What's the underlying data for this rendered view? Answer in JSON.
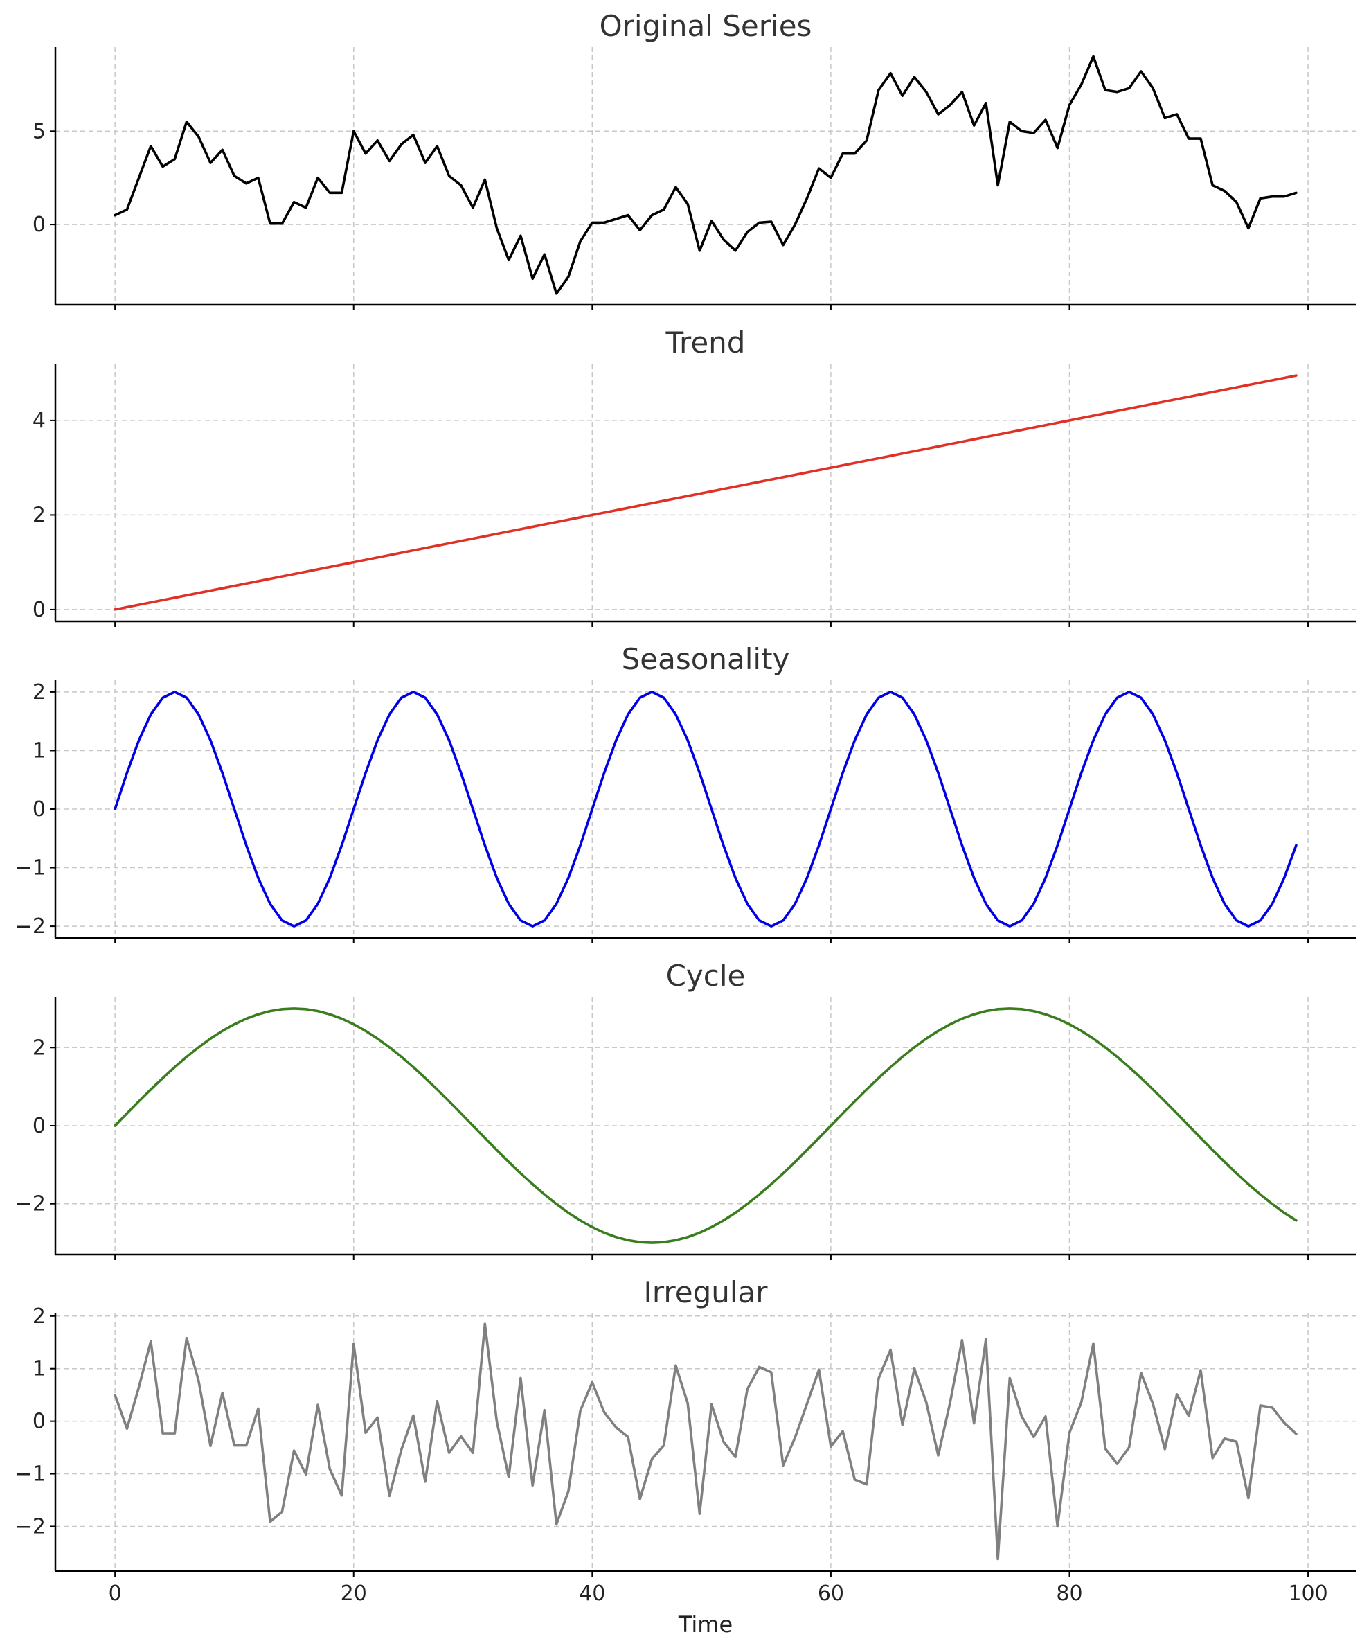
{
  "chart_data": [
    {
      "type": "line",
      "title": "Original Series",
      "color": "#000000",
      "xlim": [
        -5,
        104
      ],
      "ylim": [
        -4.3,
        9.5
      ],
      "xticks": [
        0,
        20,
        40,
        60,
        80,
        100
      ],
      "yticks": [
        0,
        5
      ],
      "grid": true,
      "x": [
        0,
        1,
        2,
        3,
        4,
        5,
        6,
        7,
        8,
        9,
        10,
        11,
        12,
        13,
        14,
        15,
        16,
        17,
        18,
        19,
        20,
        21,
        22,
        23,
        24,
        25,
        26,
        27,
        28,
        29,
        30,
        31,
        32,
        33,
        34,
        35,
        36,
        37,
        38,
        39,
        40,
        41,
        42,
        43,
        44,
        45,
        46,
        47,
        48,
        49,
        50,
        51,
        52,
        53,
        54,
        55,
        56,
        57,
        58,
        59,
        60,
        61,
        62,
        63,
        64,
        65,
        66,
        67,
        68,
        69,
        70,
        71,
        72,
        73,
        74,
        75,
        76,
        77,
        78,
        79,
        80,
        81,
        82,
        83,
        84,
        85,
        86,
        87,
        88,
        89,
        90,
        91,
        92,
        93,
        94,
        95,
        96,
        97,
        98,
        99
      ],
      "y": [
        0.5,
        0.8,
        2.5,
        4.2,
        3.1,
        3.5,
        5.5,
        4.7,
        3.3,
        4.0,
        2.6,
        2.2,
        2.5,
        0.05,
        0.05,
        1.2,
        0.9,
        2.5,
        1.7,
        1.7,
        5.0,
        3.8,
        4.5,
        3.4,
        4.3,
        4.8,
        3.3,
        4.2,
        2.6,
        2.1,
        0.9,
        2.4,
        -0.2,
        -1.9,
        -0.6,
        -2.9,
        -1.6,
        -3.7,
        -2.8,
        -0.9,
        0.1,
        0.1,
        0.3,
        0.5,
        -0.3,
        0.5,
        0.8,
        2.0,
        1.1,
        -1.4,
        0.2,
        -0.8,
        -1.4,
        -0.4,
        0.1,
        0.15,
        -1.1,
        0.0,
        1.4,
        3.0,
        2.5,
        3.8,
        3.8,
        4.5,
        7.2,
        8.1,
        6.9,
        7.9,
        7.1,
        5.9,
        6.4,
        7.1,
        5.3,
        6.5,
        2.1,
        5.5,
        5.0,
        4.9,
        5.6,
        4.1,
        6.4,
        7.5,
        9.0,
        7.2,
        7.1,
        7.3,
        8.2,
        7.3,
        5.7,
        5.9,
        4.6,
        4.6,
        2.1,
        1.8,
        1.2,
        -0.2,
        1.4,
        1.5,
        1.5,
        1.7
      ]
    },
    {
      "type": "line",
      "title": "Trend",
      "color": "#e03127",
      "xlim": [
        -5,
        104
      ],
      "ylim": [
        -0.25,
        5.2
      ],
      "xticks": [
        0,
        20,
        40,
        60,
        80,
        100
      ],
      "yticks": [
        0,
        2,
        4
      ],
      "grid": true,
      "x": [
        0,
        99
      ],
      "y": [
        0.0,
        4.95
      ]
    },
    {
      "type": "line",
      "title": "Seasonality",
      "color": "#0000e6",
      "xlim": [
        -5,
        104
      ],
      "ylim": [
        -2.2,
        2.2
      ],
      "xticks": [
        0,
        20,
        40,
        60,
        80,
        100
      ],
      "yticks": [
        -2,
        -1,
        0,
        1,
        2
      ],
      "grid": true,
      "function": "2*sin(2*pi*t/20)",
      "x_range": [
        0,
        99
      ]
    },
    {
      "type": "line",
      "title": "Cycle",
      "color": "#3a7d1e",
      "xlim": [
        -5,
        104
      ],
      "ylim": [
        -3.3,
        3.3
      ],
      "xticks": [
        0,
        20,
        40,
        60,
        80,
        100
      ],
      "yticks": [
        -2,
        0,
        2
      ],
      "grid": true,
      "function": "3*sin(2*pi*t/60)",
      "x_range": [
        0,
        99
      ]
    },
    {
      "type": "line",
      "title": "Irregular",
      "color": "#808080",
      "xlim": [
        -5,
        104
      ],
      "ylim": [
        -2.85,
        2.05
      ],
      "xticks": [
        0,
        20,
        40,
        60,
        80,
        100
      ],
      "yticks": [
        -2,
        -1,
        0,
        1,
        2
      ],
      "xlabel": "Time",
      "grid": true,
      "x": [
        0,
        1,
        2,
        3,
        4,
        5,
        6,
        7,
        8,
        9,
        10,
        11,
        12,
        13,
        14,
        15,
        16,
        17,
        18,
        19,
        20,
        21,
        22,
        23,
        24,
        25,
        26,
        27,
        28,
        29,
        30,
        31,
        32,
        33,
        34,
        35,
        36,
        37,
        38,
        39,
        40,
        41,
        42,
        43,
        44,
        45,
        46,
        47,
        48,
        49,
        50,
        51,
        52,
        53,
        54,
        55,
        56,
        57,
        58,
        59,
        60,
        61,
        62,
        63,
        64,
        65,
        66,
        67,
        68,
        69,
        70,
        71,
        72,
        73,
        74,
        75,
        76,
        77,
        78,
        79,
        80,
        81,
        82,
        83,
        84,
        85,
        86,
        87,
        88,
        89,
        90,
        91,
        92,
        93,
        94,
        95,
        96,
        97,
        98,
        99
      ],
      "y": [
        0.5,
        -0.14,
        0.65,
        1.52,
        -0.23,
        -0.23,
        1.58,
        0.77,
        -0.47,
        0.54,
        -0.46,
        -0.46,
        0.24,
        -1.91,
        -1.72,
        -0.56,
        -1.01,
        0.31,
        -0.91,
        -1.41,
        1.47,
        -0.22,
        0.07,
        -1.42,
        -0.54,
        0.11,
        -1.15,
        0.38,
        -0.6,
        -0.29,
        -0.6,
        1.85,
        -0.01,
        -1.06,
        0.82,
        -1.22,
        0.21,
        -1.96,
        -1.33,
        0.2,
        0.74,
        0.17,
        -0.12,
        -0.3,
        -1.48,
        -0.72,
        -0.46,
        1.06,
        0.34,
        -1.76,
        0.32,
        -0.39,
        -0.68,
        0.61,
        1.03,
        0.93,
        -0.84,
        -0.31,
        0.33,
        0.98,
        -0.48,
        -0.19,
        -1.11,
        -1.2,
        0.81,
        1.36,
        -0.07,
        1.0,
        0.36,
        -0.65,
        0.36,
        1.54,
        -0.04,
        1.56,
        -2.62,
        0.82,
        0.09,
        -0.3,
        0.09,
        -2.0,
        -0.22,
        0.36,
        1.48,
        -0.52,
        -0.81,
        -0.5,
        0.92,
        0.33,
        -0.53,
        0.51,
        0.1,
        0.97,
        -0.7,
        -0.33,
        -0.39,
        -1.46,
        0.3,
        0.26,
        -0.03,
        -0.24
      ]
    }
  ]
}
